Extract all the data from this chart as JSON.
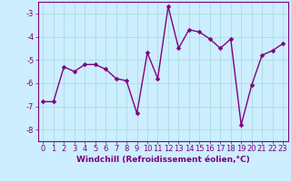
{
  "x": [
    0,
    1,
    2,
    3,
    4,
    5,
    6,
    7,
    8,
    9,
    10,
    11,
    12,
    13,
    14,
    15,
    16,
    17,
    18,
    19,
    20,
    21,
    22,
    23
  ],
  "y": [
    -6.8,
    -6.8,
    -5.3,
    -5.5,
    -5.2,
    -5.2,
    -5.4,
    -5.8,
    -5.9,
    -7.3,
    -4.7,
    -5.8,
    -2.7,
    -4.5,
    -3.7,
    -3.8,
    -4.1,
    -4.5,
    -4.1,
    -7.8,
    -6.1,
    -4.8,
    -4.6,
    -4.3
  ],
  "bg_color": "#cceeff",
  "grid_color": "#aadddd",
  "xlabel": "Windchill (Refroidissement éolien,°C)",
  "ylim": [
    -8.5,
    -2.5
  ],
  "xlim": [
    -0.5,
    23.5
  ],
  "yticks": [
    -8,
    -7,
    -6,
    -5,
    -4,
    -3
  ],
  "xticks": [
    0,
    1,
    2,
    3,
    4,
    5,
    6,
    7,
    8,
    9,
    10,
    11,
    12,
    13,
    14,
    15,
    16,
    17,
    18,
    19,
    20,
    21,
    22,
    23
  ],
  "line_color": "#7f007f",
  "xlabel_fontsize": 6.5,
  "tick_fontsize": 6.0,
  "line_width": 1.0,
  "marker_size": 2.5
}
